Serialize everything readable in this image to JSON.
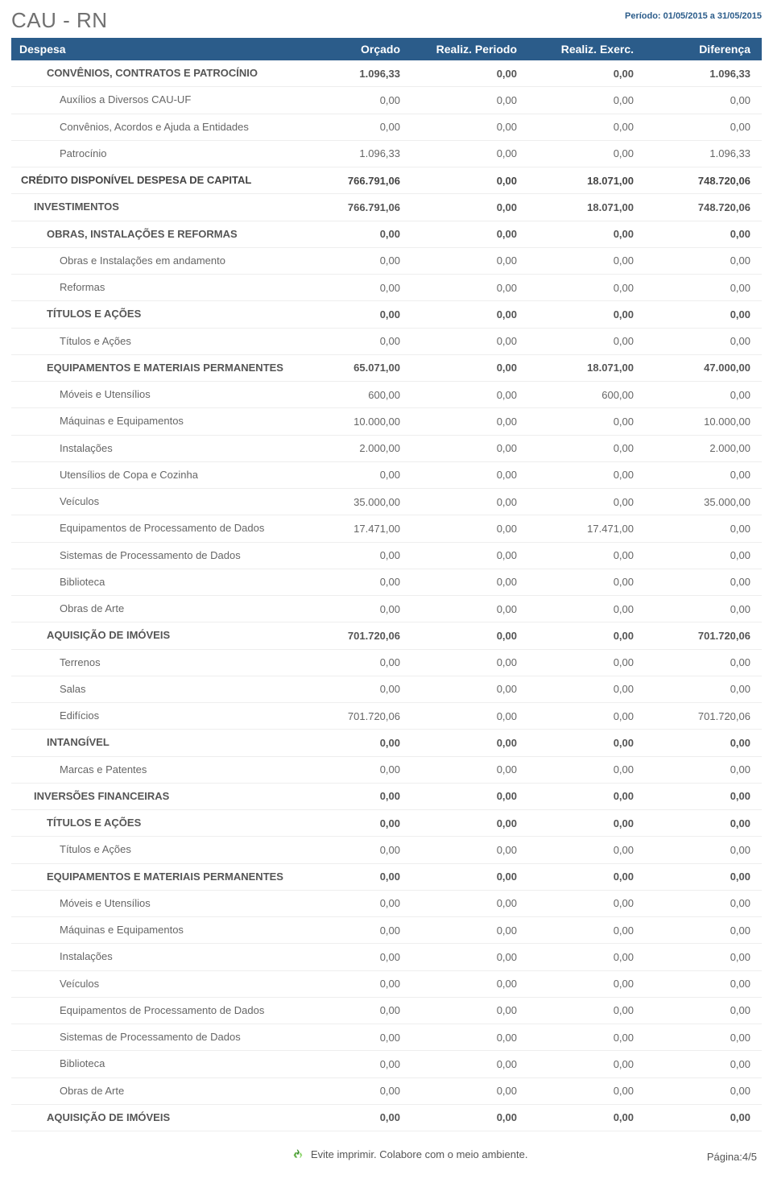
{
  "header": {
    "title": "CAU - RN",
    "period": "Período: 01/05/2015 a 31/05/2015"
  },
  "columns": {
    "label": "Despesa",
    "c1": "Orçado",
    "c2": "Realiz. Periodo",
    "c3": "Realiz. Exerc.",
    "c4": "Diferença"
  },
  "rows": [
    {
      "level": 2,
      "label": "CONVÊNIOS, CONTRATOS E PATROCÍNIO",
      "c1": "1.096,33",
      "c2": "0,00",
      "c3": "0,00",
      "c4": "1.096,33"
    },
    {
      "level": 3,
      "label": "Auxílios a Diversos CAU-UF",
      "c1": "0,00",
      "c2": "0,00",
      "c3": "0,00",
      "c4": "0,00"
    },
    {
      "level": 3,
      "label": "Convênios, Acordos e Ajuda a Entidades",
      "c1": "0,00",
      "c2": "0,00",
      "c3": "0,00",
      "c4": "0,00"
    },
    {
      "level": 3,
      "label": "Patrocínio",
      "c1": "1.096,33",
      "c2": "0,00",
      "c3": "0,00",
      "c4": "1.096,33"
    },
    {
      "level": 0,
      "label": "CRÉDITO DISPONÍVEL DESPESA DE CAPITAL",
      "c1": "766.791,06",
      "c2": "0,00",
      "c3": "18.071,00",
      "c4": "748.720,06"
    },
    {
      "level": 1,
      "label": "INVESTIMENTOS",
      "c1": "766.791,06",
      "c2": "0,00",
      "c3": "18.071,00",
      "c4": "748.720,06"
    },
    {
      "level": 2,
      "label": "OBRAS, INSTALAÇÕES E REFORMAS",
      "c1": "0,00",
      "c2": "0,00",
      "c3": "0,00",
      "c4": "0,00"
    },
    {
      "level": 3,
      "label": "Obras e Instalações em andamento",
      "c1": "0,00",
      "c2": "0,00",
      "c3": "0,00",
      "c4": "0,00"
    },
    {
      "level": 3,
      "label": "Reformas",
      "c1": "0,00",
      "c2": "0,00",
      "c3": "0,00",
      "c4": "0,00"
    },
    {
      "level": 2,
      "label": "TÍTULOS E AÇÕES",
      "c1": "0,00",
      "c2": "0,00",
      "c3": "0,00",
      "c4": "0,00"
    },
    {
      "level": 3,
      "label": "Títulos e Ações",
      "c1": "0,00",
      "c2": "0,00",
      "c3": "0,00",
      "c4": "0,00"
    },
    {
      "level": 2,
      "label": "EQUIPAMENTOS E MATERIAIS PERMANENTES",
      "c1": "65.071,00",
      "c2": "0,00",
      "c3": "18.071,00",
      "c4": "47.000,00"
    },
    {
      "level": 3,
      "label": "Móveis e Utensílios",
      "c1": "600,00",
      "c2": "0,00",
      "c3": "600,00",
      "c4": "0,00"
    },
    {
      "level": 3,
      "label": "Máquinas e Equipamentos",
      "c1": "10.000,00",
      "c2": "0,00",
      "c3": "0,00",
      "c4": "10.000,00"
    },
    {
      "level": 3,
      "label": "Instalações",
      "c1": "2.000,00",
      "c2": "0,00",
      "c3": "0,00",
      "c4": "2.000,00"
    },
    {
      "level": 3,
      "label": "Utensílios de Copa e Cozinha",
      "c1": "0,00",
      "c2": "0,00",
      "c3": "0,00",
      "c4": "0,00"
    },
    {
      "level": 3,
      "label": "Veículos",
      "c1": "35.000,00",
      "c2": "0,00",
      "c3": "0,00",
      "c4": "35.000,00"
    },
    {
      "level": 3,
      "label": "Equipamentos de Processamento de Dados",
      "c1": "17.471,00",
      "c2": "0,00",
      "c3": "17.471,00",
      "c4": "0,00"
    },
    {
      "level": 3,
      "label": "Sistemas de Processamento de Dados",
      "c1": "0,00",
      "c2": "0,00",
      "c3": "0,00",
      "c4": "0,00"
    },
    {
      "level": 3,
      "label": "Biblioteca",
      "c1": "0,00",
      "c2": "0,00",
      "c3": "0,00",
      "c4": "0,00"
    },
    {
      "level": 3,
      "label": "Obras de Arte",
      "c1": "0,00",
      "c2": "0,00",
      "c3": "0,00",
      "c4": "0,00"
    },
    {
      "level": 2,
      "label": "AQUISIÇÃO DE IMÓVEIS",
      "c1": "701.720,06",
      "c2": "0,00",
      "c3": "0,00",
      "c4": "701.720,06"
    },
    {
      "level": 3,
      "label": "Terrenos",
      "c1": "0,00",
      "c2": "0,00",
      "c3": "0,00",
      "c4": "0,00"
    },
    {
      "level": 3,
      "label": "Salas",
      "c1": "0,00",
      "c2": "0,00",
      "c3": "0,00",
      "c4": "0,00"
    },
    {
      "level": 3,
      "label": "Edifícios",
      "c1": "701.720,06",
      "c2": "0,00",
      "c3": "0,00",
      "c4": "701.720,06"
    },
    {
      "level": 2,
      "label": "INTANGÍVEL",
      "c1": "0,00",
      "c2": "0,00",
      "c3": "0,00",
      "c4": "0,00"
    },
    {
      "level": 3,
      "label": "Marcas e Patentes",
      "c1": "0,00",
      "c2": "0,00",
      "c3": "0,00",
      "c4": "0,00"
    },
    {
      "level": 1,
      "label": "INVERSÕES FINANCEIRAS",
      "c1": "0,00",
      "c2": "0,00",
      "c3": "0,00",
      "c4": "0,00"
    },
    {
      "level": 2,
      "label": "TÍTULOS E AÇÕES",
      "c1": "0,00",
      "c2": "0,00",
      "c3": "0,00",
      "c4": "0,00"
    },
    {
      "level": 3,
      "label": "Títulos e Ações",
      "c1": "0,00",
      "c2": "0,00",
      "c3": "0,00",
      "c4": "0,00"
    },
    {
      "level": 2,
      "label": "EQUIPAMENTOS E MATERIAIS PERMANENTES",
      "c1": "0,00",
      "c2": "0,00",
      "c3": "0,00",
      "c4": "0,00"
    },
    {
      "level": 3,
      "label": "Móveis e Utensílios",
      "c1": "0,00",
      "c2": "0,00",
      "c3": "0,00",
      "c4": "0,00"
    },
    {
      "level": 3,
      "label": "Máquinas e Equipamentos",
      "c1": "0,00",
      "c2": "0,00",
      "c3": "0,00",
      "c4": "0,00"
    },
    {
      "level": 3,
      "label": "Instalações",
      "c1": "0,00",
      "c2": "0,00",
      "c3": "0,00",
      "c4": "0,00"
    },
    {
      "level": 3,
      "label": "Veículos",
      "c1": "0,00",
      "c2": "0,00",
      "c3": "0,00",
      "c4": "0,00"
    },
    {
      "level": 3,
      "label": "Equipamentos de Processamento de Dados",
      "c1": "0,00",
      "c2": "0,00",
      "c3": "0,00",
      "c4": "0,00"
    },
    {
      "level": 3,
      "label": "Sistemas de Processamento de Dados",
      "c1": "0,00",
      "c2": "0,00",
      "c3": "0,00",
      "c4": "0,00"
    },
    {
      "level": 3,
      "label": "Biblioteca",
      "c1": "0,00",
      "c2": "0,00",
      "c3": "0,00",
      "c4": "0,00"
    },
    {
      "level": 3,
      "label": "Obras de Arte",
      "c1": "0,00",
      "c2": "0,00",
      "c3": "0,00",
      "c4": "0,00"
    },
    {
      "level": 2,
      "label": "AQUISIÇÃO DE IMÓVEIS",
      "c1": "0,00",
      "c2": "0,00",
      "c3": "0,00",
      "c4": "0,00"
    }
  ],
  "footer": {
    "eco": "Evite imprimir. Colabore com o meio ambiente.",
    "page": "Página:4/5"
  }
}
